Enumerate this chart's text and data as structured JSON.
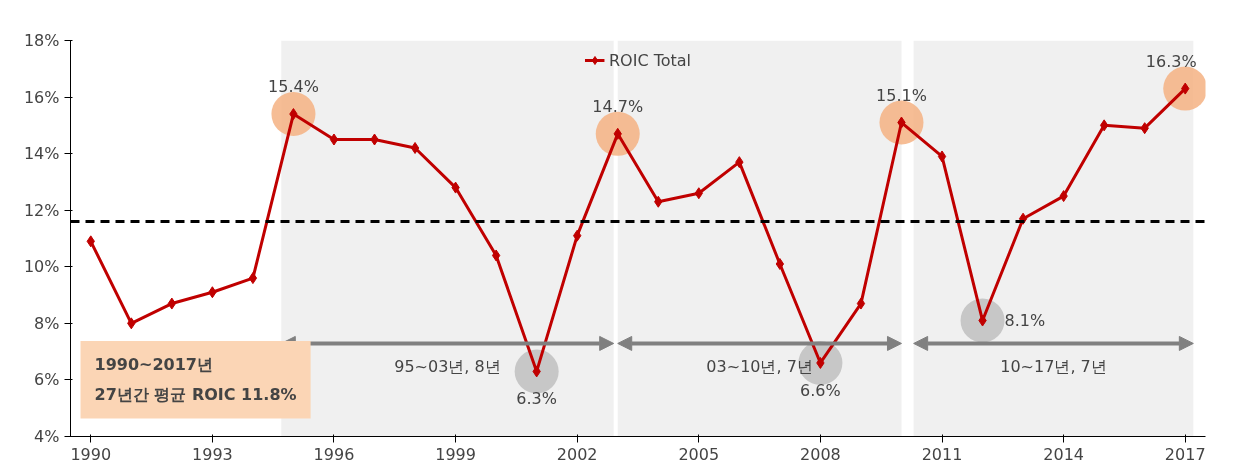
{
  "chart_data": {
    "type": "line",
    "x": [
      1990,
      1991,
      1992,
      1993,
      1994,
      1995,
      1996,
      1997,
      1998,
      1999,
      2000,
      2001,
      2002,
      2003,
      2004,
      2005,
      2006,
      2007,
      2008,
      2009,
      2010,
      2011,
      2012,
      2013,
      2014,
      2015,
      2016,
      2017
    ],
    "series": [
      {
        "name": "ROIC Total",
        "color": "#c00000",
        "marker": "diamond",
        "values": [
          10.9,
          8.0,
          8.7,
          9.1,
          9.6,
          15.4,
          14.5,
          14.5,
          14.2,
          12.8,
          10.4,
          6.3,
          11.1,
          14.7,
          12.3,
          12.6,
          13.7,
          10.1,
          6.6,
          8.7,
          15.1,
          13.9,
          8.1,
          11.7,
          12.5,
          15.0,
          14.9,
          16.3
        ],
        "value_labels": [
          null,
          null,
          null,
          null,
          null,
          "15.4%",
          null,
          null,
          null,
          null,
          null,
          "6.3%",
          null,
          "14.7%",
          null,
          null,
          null,
          null,
          "6.6%",
          null,
          "15.1%",
          null,
          "8.1%",
          null,
          null,
          null,
          null,
          "16.3%"
        ]
      },
      {
        "type": "scatter",
        "color": "#f4b183",
        "x": [
          1995,
          2003,
          2010,
          2017
        ],
        "values": [
          15.4,
          14.7,
          15.1,
          16.3
        ]
      },
      {
        "type": "scatter",
        "color": "#bfbfbf",
        "x": [
          2001,
          2008,
          2012
        ],
        "values": [
          6.3,
          6.6,
          8.1
        ]
      }
    ],
    "xlim": [
      1989.5,
      2017.5
    ],
    "xticks": [
      1990,
      1993,
      1996,
      1999,
      2002,
      2005,
      2008,
      2011,
      2014,
      2017
    ],
    "ylim": [
      4,
      18
    ],
    "yticks": [
      {
        "value": 4,
        "label": "4%"
      },
      {
        "value": 6,
        "label": "6%"
      },
      {
        "value": 8,
        "label": "8%"
      },
      {
        "value": 10,
        "label": "10%"
      },
      {
        "value": 12,
        "label": "12%"
      },
      {
        "value": 14,
        "label": "14%"
      },
      {
        "value": 16,
        "label": "16%"
      },
      {
        "value": 18,
        "label": "18%"
      }
    ],
    "ref_lines": [
      {
        "axis": "y",
        "value": 11.6,
        "color": "#000000",
        "line_style": "dashed"
      }
    ],
    "bands": [
      {
        "axis": "x",
        "from": 1994.7,
        "to": 2002.9,
        "label": "95~03년, 8년",
        "color": "#808080"
      },
      {
        "axis": "x",
        "from": 2003.0,
        "to": 2010.0,
        "label": "03~10년, 7년",
        "color": "#808080"
      },
      {
        "axis": "x",
        "from": 2010.3,
        "to": 2017.2,
        "label": "10~17년, 7년",
        "color": "#808080"
      }
    ],
    "annotations": [
      "1990~2017년\n27년간 평균 ROIC 11.8%"
    ],
    "legend": "top",
    "grid": false
  }
}
